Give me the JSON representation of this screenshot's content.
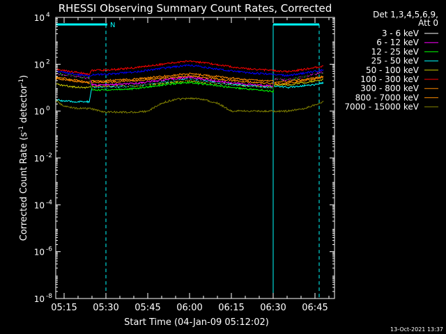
{
  "chart_data": {
    "type": "line",
    "title": "RHESSI Observing Summary Count Rates, Corrected",
    "xlabel": "Start Time (04-Jan-09 05:12:02)",
    "ylabel": "Corrected Count Rate (s⁻¹ detector⁻¹)",
    "ylabel_parts": {
      "main": "Corrected Count Rate (s",
      "exp1": "-1",
      "mid": " detector",
      "exp2": "-1",
      "end": ")"
    },
    "yscale": "log",
    "ylim_exp": [
      -8,
      4
    ],
    "xlim_min": [
      312,
      412
    ],
    "y_ticks": [
      {
        "base": "10",
        "exp": "-8",
        "value_exp": -8
      },
      {
        "base": "10",
        "exp": "-6",
        "value_exp": -6
      },
      {
        "base": "10",
        "exp": "-4",
        "value_exp": -4
      },
      {
        "base": "10",
        "exp": "-2",
        "value_exp": -2
      },
      {
        "base": "10",
        "exp": "0",
        "value_exp": 0
      },
      {
        "base": "10",
        "exp": "2",
        "value_exp": 2
      },
      {
        "base": "10",
        "exp": "4",
        "value_exp": 4
      }
    ],
    "x_ticks": [
      {
        "label": "05:15",
        "min": 315
      },
      {
        "label": "05:30",
        "min": 330
      },
      {
        "label": "05:45",
        "min": 345
      },
      {
        "label": "06:00",
        "min": 360
      },
      {
        "label": "06:15",
        "min": 375
      },
      {
        "label": "06:30",
        "min": 390
      },
      {
        "label": "06:45",
        "min": 405
      }
    ],
    "legend_header": [
      "Det 1,3,4,5,6,9,",
      "Att 0"
    ],
    "legend_position": "right",
    "series": [
      {
        "name": "3 - 6 keV",
        "color": "#000000",
        "x": [
          312,
          318,
          324,
          325,
          330,
          340,
          350,
          360,
          370,
          380,
          390,
          390.5,
          395,
          400,
          406,
          408
        ],
        "y": [
          40,
          32,
          25,
          10,
          10,
          12,
          17,
          22,
          15,
          11,
          9,
          25,
          21,
          28,
          40,
          45
        ]
      },
      {
        "name": "6 - 12 keV",
        "color": "#ff00ff",
        "x": [
          312,
          318,
          324,
          325,
          330,
          340,
          350,
          360,
          370,
          380,
          390,
          390.5,
          395,
          400,
          406,
          408
        ],
        "y": [
          40,
          32,
          25,
          13,
          13,
          15,
          21,
          28,
          19,
          14,
          12,
          25,
          21,
          28,
          40,
          45
        ]
      },
      {
        "name": "12 - 25 keV",
        "color": "#00ff00",
        "x": [
          312,
          318,
          324,
          325,
          330,
          340,
          350,
          360,
          370,
          380,
          390,
          390.5,
          395,
          400,
          406,
          408
        ],
        "y": [
          40,
          32,
          25,
          8,
          8,
          9,
          13,
          17,
          12,
          9,
          7,
          25,
          21,
          28,
          40,
          45
        ]
      },
      {
        "name": "25 - 50 keV",
        "color": "#00ffff",
        "x": [
          312,
          318,
          324,
          325,
          330,
          340,
          350,
          360,
          370,
          380,
          390,
          390.5,
          395,
          400,
          406,
          408
        ],
        "y": [
          3,
          2.5,
          2.5,
          10,
          10,
          12,
          17,
          23,
          16,
          12,
          10,
          12,
          10,
          12,
          14,
          16
        ]
      },
      {
        "name": "50 - 100 keV",
        "color": "#cccc00",
        "x": [
          312,
          318,
          324,
          325,
          330,
          340,
          350,
          360,
          370,
          380,
          390,
          390.5,
          395,
          400,
          406,
          408
        ],
        "y": [
          14,
          11,
          10,
          11,
          11,
          12,
          15,
          20,
          15,
          12,
          10,
          13,
          13,
          16,
          20,
          22
        ]
      },
      {
        "name": "100 - 300 keV",
        "color": "#ff0000",
        "x": [
          312,
          318,
          324,
          325,
          330,
          340,
          350,
          360,
          370,
          380,
          390,
          390.5,
          395,
          400,
          406,
          408
        ],
        "y": [
          60,
          48,
          38,
          55,
          56,
          70,
          100,
          140,
          95,
          65,
          55,
          52,
          48,
          58,
          75,
          85
        ]
      },
      {
        "name": "300 - 800 keV",
        "color": "#ff8c00",
        "x": [
          312,
          318,
          324,
          325,
          330,
          340,
          350,
          360,
          370,
          380,
          390,
          390.5,
          395,
          400,
          406,
          408
        ],
        "y": [
          28,
          22,
          17,
          19,
          20,
          23,
          30,
          40,
          30,
          22,
          19,
          18,
          18,
          22,
          27,
          30
        ]
      },
      {
        "name": "800 - 7000 keV",
        "color": "#ff8c00",
        "x": [
          312,
          318,
          324,
          325,
          330,
          340,
          350,
          360,
          370,
          380,
          390,
          390.5,
          395,
          400,
          406,
          408
        ],
        "y": [
          25,
          20,
          16,
          17,
          17,
          20,
          25,
          32,
          24,
          18,
          15,
          15,
          15,
          19,
          25,
          29
        ]
      },
      {
        "name": "7000 - 15000 keV",
        "color": "#808000",
        "x": [
          312,
          315,
          320,
          324,
          330,
          340,
          345,
          350,
          355,
          360,
          365,
          370,
          375,
          390,
          395,
          400,
          406,
          408
        ],
        "y": [
          2.8,
          1.6,
          1.3,
          1.3,
          0.9,
          0.9,
          1.0,
          2.2,
          3.2,
          3.5,
          3.2,
          2.2,
          1.0,
          1.0,
          1.0,
          1.2,
          2.0,
          2.6
        ]
      }
    ],
    "deep_blue_series": {
      "color": "#0000ff",
      "x": [
        312,
        318,
        324,
        325,
        330,
        340,
        350,
        360,
        370,
        380,
        390,
        390.5,
        395,
        400,
        406,
        408
      ],
      "y": [
        50,
        40,
        31,
        36,
        37,
        46,
        66,
        92,
        62,
        44,
        37,
        36,
        33,
        40,
        52,
        60
      ]
    },
    "flag_bars": [
      {
        "x0": 312,
        "x1": 328.5,
        "level_exp": 3.7,
        "color": "#00ffff",
        "label": ""
      },
      {
        "x0": 328.5,
        "x1": 330.5,
        "level_exp": 3.7,
        "color": "#00ffff",
        "label": "N"
      },
      {
        "x0": 390,
        "x1": 406.5,
        "level_exp": 3.7,
        "color": "#00ffff",
        "label": ""
      }
    ],
    "vlines": [
      {
        "min": 330,
        "dashed": true,
        "color": "#00ffff"
      },
      {
        "min": 390,
        "dashed": false,
        "color": "#00ffff"
      },
      {
        "min": 406.5,
        "dashed": true,
        "color": "#00ffff"
      }
    ]
  },
  "footer": {
    "timestamp": "13-Oct-2021 13:37"
  }
}
